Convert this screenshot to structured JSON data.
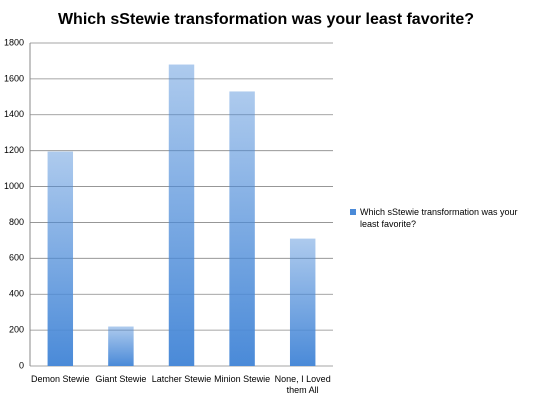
{
  "chart_data": {
    "type": "bar",
    "title": "Which sStewie transformation was your least favorite?",
    "categories": [
      "Demon Stewie",
      "Giant Stewie",
      "Latcher Stewie",
      "Minion Stewie",
      "None, I Loved them All"
    ],
    "series": [
      {
        "name": "Which sStewie transformation was your least favorite?",
        "color": "#4a8ad8",
        "values": [
          1195,
          220,
          1680,
          1530,
          710
        ]
      }
    ],
    "ylim": [
      0,
      1800
    ],
    "yticks": [
      0,
      200,
      400,
      600,
      800,
      1000,
      1200,
      1400,
      1600,
      1800
    ],
    "grid": true,
    "legend": "right"
  }
}
